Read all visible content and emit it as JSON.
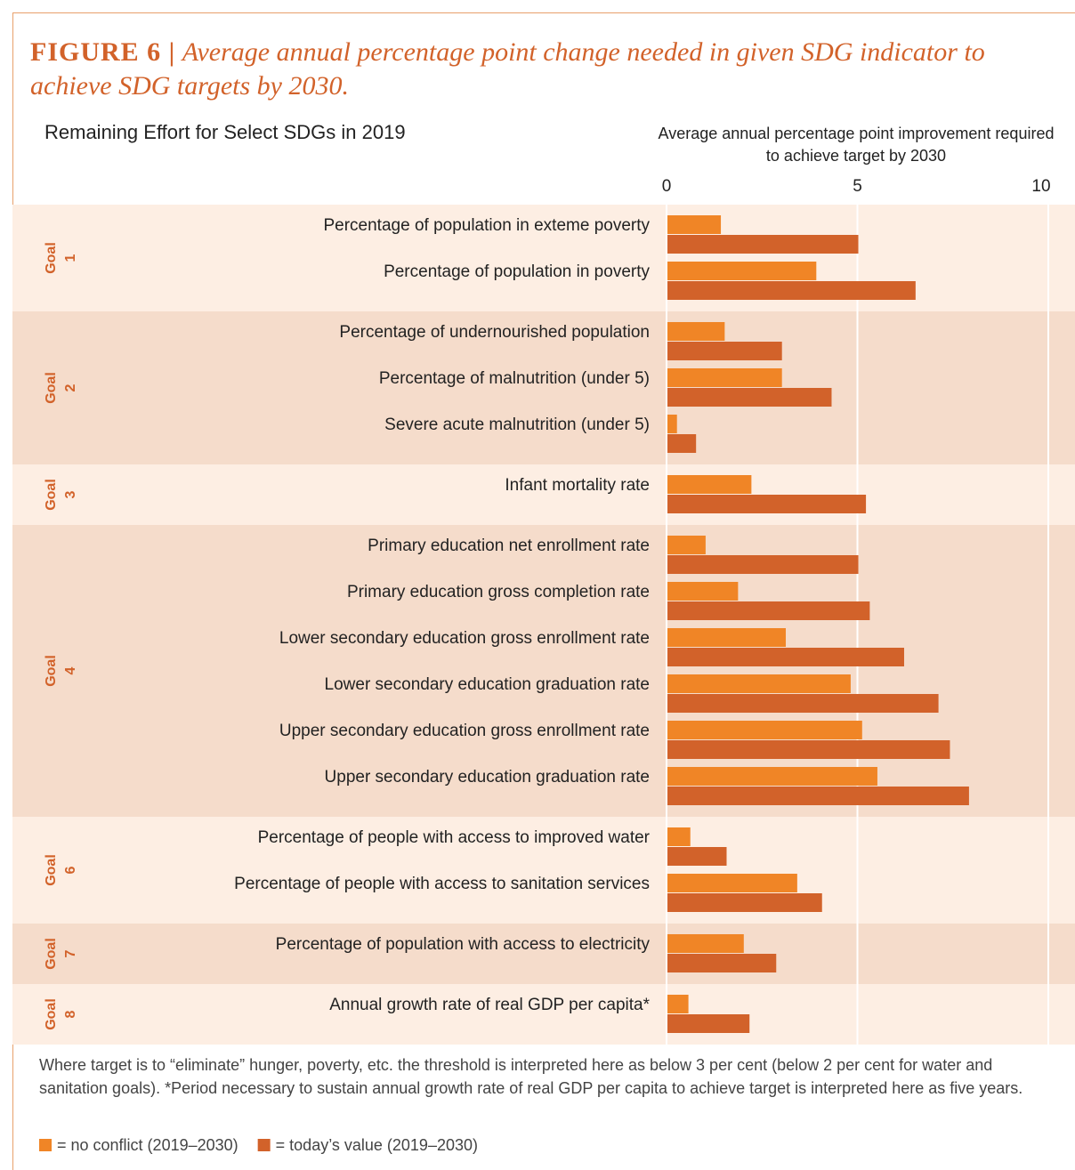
{
  "chart_data": {
    "type": "bar",
    "orientation": "horizontal",
    "figure_label": "FIGURE 6 |",
    "title": "Average annual percentage point change needed in given SDG indicator to achieve SDG targets by 2030.",
    "subtitle": "Remaining Effort for Select SDGs in 2019",
    "x_label": "Average annual percentage point improvement required to achieve target by 2030",
    "xlim": [
      0,
      10
    ],
    "xticks": [
      0,
      5,
      10
    ],
    "grid": true,
    "groups": [
      {
        "label": [
          "Goal",
          "1"
        ],
        "categories": [
          "Percentage of population in exteme poverty",
          "Percentage of population in poverty"
        ]
      },
      {
        "label": [
          "Goal",
          "2"
        ],
        "categories": [
          "Percentage of undernourished population",
          "Percentage of malnutrition (under 5)",
          "Severe acute malnutrition (under 5)"
        ]
      },
      {
        "label": [
          "Goal",
          "3"
        ],
        "categories": [
          "Infant mortality rate"
        ]
      },
      {
        "label": [
          "Goal",
          "4"
        ],
        "categories": [
          "Primary education net enrollment rate",
          "Primary education gross completion rate",
          "Lower secondary education gross enrollment rate",
          "Lower secondary education graduation rate",
          "Upper secondary education gross enrollment rate",
          "Upper secondary education graduation rate"
        ]
      },
      {
        "label": [
          "Goal",
          "6"
        ],
        "categories": [
          "Percentage of people with access to improved water",
          "Percentage of people with access to sanitation services"
        ]
      },
      {
        "label": [
          "Goal",
          "7"
        ],
        "categories": [
          "Percentage of population with access to electricity"
        ]
      },
      {
        "label": [
          "Goal",
          "8"
        ],
        "categories": [
          "Annual growth rate of real GDP per capita*"
        ]
      }
    ],
    "series": [
      {
        "name": "= no conflict (2019–2030)",
        "color": "#f08526",
        "values": [
          1.4,
          3.9,
          1.5,
          3.0,
          0.25,
          2.2,
          1.0,
          1.85,
          3.1,
          4.8,
          5.1,
          5.5,
          0.6,
          3.4,
          2.0,
          0.55
        ]
      },
      {
        "name": "= today’s value (2019–2030)",
        "color": "#d2622a",
        "values": [
          5.0,
          6.5,
          3.0,
          4.3,
          0.75,
          5.2,
          5.0,
          5.3,
          6.2,
          7.1,
          7.4,
          7.9,
          1.55,
          4.05,
          2.85,
          2.15
        ]
      }
    ],
    "band_colors": [
      "#fdeee3",
      "#f5dccb"
    ],
    "note": "Where target is to “eliminate” hunger, poverty, etc. the threshold is interpreted here as below 3 per cent (below 2 per cent for water and sanitation goals). *Period necessary to sustain annual growth rate of real GDP per capita to achieve target is interpreted here as five years."
  }
}
